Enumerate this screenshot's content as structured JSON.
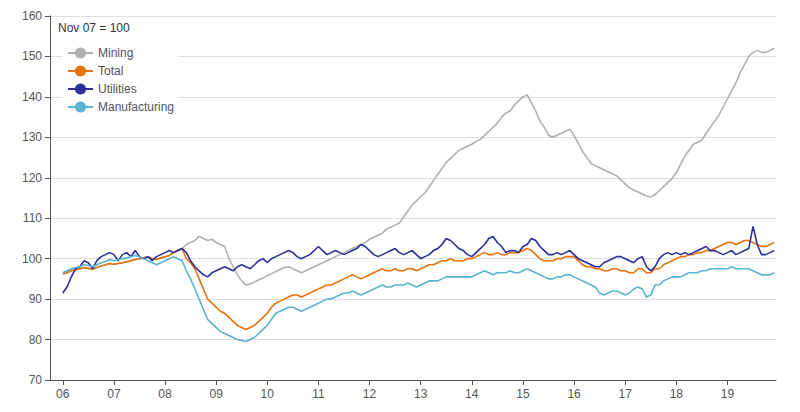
{
  "chart_data": {
    "type": "line",
    "annotation": "Nov 07 = 100",
    "x": [
      2006,
      2006.0833333333333,
      2006.1666666666667,
      2006.25,
      2006.3333333333333,
      2006.4166666666667,
      2006.5,
      2006.5833333333333,
      2006.6666666666667,
      2006.75,
      2006.8333333333333,
      2006.9166666666667,
      2007,
      2007.0833333333333,
      2007.1666666666667,
      2007.25,
      2007.3333333333333,
      2007.4166666666667,
      2007.5,
      2007.5833333333333,
      2007.6666666666667,
      2007.75,
      2007.8333333333333,
      2007.9166666666667,
      2008,
      2008.0833333333333,
      2008.1666666666667,
      2008.25,
      2008.3333333333333,
      2008.4166666666667,
      2008.5,
      2008.5833333333333,
      2008.6666666666667,
      2008.75,
      2008.8333333333333,
      2008.9166666666667,
      2009,
      2009.0833333333333,
      2009.1666666666667,
      2009.25,
      2009.3333333333333,
      2009.4166666666667,
      2009.5,
      2009.5833333333333,
      2009.6666666666667,
      2009.75,
      2009.8333333333333,
      2009.9166666666667,
      2010,
      2010.0833333333333,
      2010.1666666666667,
      2010.25,
      2010.3333333333333,
      2010.4166666666667,
      2010.5,
      2010.5833333333333,
      2010.6666666666667,
      2010.75,
      2010.8333333333333,
      2010.9166666666667,
      2011,
      2011.0833333333333,
      2011.1666666666667,
      2011.25,
      2011.3333333333333,
      2011.4166666666667,
      2011.5,
      2011.5833333333333,
      2011.6666666666667,
      2011.75,
      2011.8333333333333,
      2011.9166666666667,
      2012,
      2012.0833333333333,
      2012.1666666666667,
      2012.25,
      2012.3333333333333,
      2012.4166666666667,
      2012.5,
      2012.5833333333333,
      2012.6666666666667,
      2012.75,
      2012.8333333333333,
      2012.9166666666667,
      2013,
      2013.0833333333333,
      2013.1666666666667,
      2013.25,
      2013.3333333333333,
      2013.4166666666667,
      2013.5,
      2013.5833333333333,
      2013.6666666666667,
      2013.75,
      2013.8333333333333,
      2013.9166666666667,
      2014,
      2014.0833333333333,
      2014.1666666666667,
      2014.25,
      2014.3333333333333,
      2014.4166666666667,
      2014.5,
      2014.5833333333333,
      2014.6666666666667,
      2014.75,
      2014.8333333333333,
      2014.9166666666667,
      2015,
      2015.0833333333333,
      2015.1666666666667,
      2015.25,
      2015.3333333333333,
      2015.4166666666667,
      2015.5,
      2015.5833333333333,
      2015.6666666666667,
      2015.75,
      2015.8333333333333,
      2015.9166666666667,
      2016,
      2016.0833333333333,
      2016.1666666666667,
      2016.25,
      2016.3333333333333,
      2016.4166666666667,
      2016.5,
      2016.5833333333333,
      2016.6666666666667,
      2016.75,
      2016.8333333333333,
      2016.9166666666667,
      2017,
      2017.0833333333333,
      2017.1666666666667,
      2017.25,
      2017.3333333333333,
      2017.4166666666667,
      2017.5,
      2017.5833333333333,
      2017.6666666666667,
      2017.75,
      2017.8333333333333,
      2017.9166666666667,
      2018,
      2018.0833333333333,
      2018.1666666666667,
      2018.25,
      2018.3333333333333,
      2018.4166666666667,
      2018.5,
      2018.5833333333333,
      2018.6666666666667,
      2018.75,
      2018.8333333333333,
      2018.9166666666667,
      2019,
      2019.0833333333333,
      2019.1666666666667,
      2019.25,
      2019.3333333333333,
      2019.4166666666667,
      2019.5,
      2019.5833333333333,
      2019.6666666666667,
      2019.75,
      2019.8333333333333,
      2019.9166666666667
    ],
    "series": [
      {
        "name": "Mining",
        "color": "#b0b0b0",
        "values": [
          96.2,
          96.5,
          97.0,
          97.3,
          97.5,
          97.8,
          97.6,
          97.4,
          97.8,
          98.2,
          98.5,
          98.8,
          98.6,
          98.8,
          99.0,
          99.2,
          99.5,
          99.8,
          100.0,
          100.2,
          100.5,
          100.0,
          99.8,
          100.2,
          100.5,
          100.8,
          101.5,
          102.0,
          102.5,
          103.5,
          104.0,
          104.5,
          105.5,
          105.0,
          104.5,
          104.8,
          104.0,
          103.5,
          103.0,
          100.0,
          98.0,
          96.0,
          94.5,
          93.5,
          93.8,
          94.2,
          94.8,
          95.2,
          95.8,
          96.3,
          96.8,
          97.3,
          97.8,
          98.0,
          97.5,
          97.0,
          96.5,
          97.0,
          97.5,
          98.0,
          98.5,
          99.0,
          99.5,
          100.0,
          100.5,
          101.0,
          101.5,
          102.0,
          102.5,
          103.0,
          103.5,
          104.0,
          104.8,
          105.3,
          105.8,
          106.3,
          107.3,
          107.8,
          108.3,
          108.8,
          110.3,
          111.8,
          113.3,
          114.3,
          115.3,
          116.3,
          117.8,
          119.3,
          120.8,
          122.3,
          123.8,
          124.8,
          125.8,
          126.8,
          127.3,
          127.8,
          128.3,
          129.0,
          129.5,
          130.5,
          131.5,
          132.5,
          133.5,
          135.0,
          136.0,
          136.5,
          138.0,
          139.0,
          140.0,
          140.5,
          138.5,
          136.5,
          134.0,
          132.5,
          130.5,
          130.0,
          130.5,
          131.0,
          131.5,
          132.0,
          130.5,
          128.5,
          126.5,
          125.0,
          123.5,
          123.0,
          122.5,
          122.0,
          121.5,
          121.0,
          120.5,
          119.5,
          118.5,
          117.5,
          117.0,
          116.5,
          116.0,
          115.5,
          115.3,
          115.8,
          116.8,
          117.8,
          118.8,
          119.8,
          121.3,
          123.3,
          125.3,
          126.8,
          128.3,
          128.8,
          129.3,
          131.0,
          132.5,
          134.0,
          135.5,
          137.5,
          139.5,
          141.5,
          143.5,
          146.0,
          148.0,
          150.0,
          151.0,
          151.5,
          151.0,
          151.0,
          151.5,
          152.0
        ]
      },
      {
        "name": "Total",
        "color": "#e8720c",
        "values": [
          96.2,
          96.5,
          97.0,
          97.3,
          97.5,
          97.8,
          97.6,
          97.4,
          97.8,
          98.2,
          98.5,
          98.8,
          98.6,
          98.8,
          99.0,
          99.2,
          99.5,
          99.8,
          100.0,
          100.2,
          100.5,
          100.0,
          99.8,
          100.2,
          100.5,
          100.8,
          101.5,
          102.0,
          102.5,
          100.0,
          99.0,
          97.5,
          95.0,
          92.5,
          90.0,
          89.0,
          88.0,
          87.0,
          86.5,
          85.5,
          84.5,
          83.5,
          83.0,
          82.5,
          83.0,
          83.5,
          84.5,
          85.5,
          86.5,
          88.0,
          89.0,
          89.5,
          90.0,
          90.5,
          91.0,
          91.0,
          90.5,
          91.0,
          91.5,
          92.0,
          92.5,
          93.0,
          93.5,
          93.5,
          94.0,
          94.5,
          95.0,
          95.5,
          96.0,
          95.5,
          95.0,
          95.5,
          96.0,
          96.5,
          97.0,
          97.5,
          97.0,
          97.0,
          97.5,
          97.0,
          97.0,
          97.5,
          97.5,
          97.0,
          97.5,
          98.0,
          98.5,
          98.5,
          99.0,
          99.5,
          99.5,
          100.0,
          99.5,
          99.5,
          99.5,
          100.0,
          100.0,
          100.5,
          101.0,
          101.5,
          101.0,
          101.0,
          101.5,
          101.0,
          101.0,
          101.5,
          101.5,
          101.5,
          102.0,
          102.5,
          102.0,
          101.0,
          100.0,
          99.5,
          99.5,
          99.5,
          100.0,
          100.0,
          100.5,
          100.5,
          100.5,
          99.5,
          98.5,
          98.0,
          98.0,
          97.5,
          97.5,
          97.0,
          97.0,
          97.5,
          97.5,
          97.0,
          97.0,
          96.5,
          96.5,
          97.5,
          97.5,
          96.5,
          96.5,
          97.5,
          97.5,
          98.5,
          99.0,
          99.5,
          100.0,
          100.5,
          100.5,
          101.0,
          101.0,
          101.5,
          101.5,
          102.0,
          102.0,
          102.5,
          103.0,
          103.5,
          104.0,
          104.0,
          103.5,
          104.0,
          104.5,
          104.5,
          104.0,
          103.5,
          103.0,
          103.0,
          103.5,
          104.0
        ]
      },
      {
        "name": "Utilities",
        "color": "#2e2e9a",
        "values": [
          91.5,
          93.0,
          95.5,
          97.5,
          98.0,
          99.5,
          99.0,
          97.5,
          99.5,
          100.5,
          101.0,
          101.5,
          101.0,
          99.5,
          101.0,
          101.5,
          100.5,
          102.0,
          100.5,
          100.0,
          100.5,
          99.5,
          100.5,
          101.0,
          101.5,
          102.0,
          101.5,
          102.0,
          102.5,
          101.5,
          99.5,
          98.0,
          97.0,
          96.0,
          95.5,
          96.5,
          97.0,
          97.5,
          98.0,
          97.5,
          97.0,
          98.0,
          98.5,
          98.0,
          97.5,
          98.5,
          99.5,
          100.0,
          99.0,
          100.0,
          100.5,
          101.0,
          101.5,
          102.0,
          101.5,
          100.5,
          100.0,
          100.5,
          101.0,
          102.0,
          103.0,
          102.0,
          101.0,
          101.5,
          102.0,
          101.5,
          101.0,
          101.5,
          102.0,
          102.5,
          103.5,
          103.0,
          102.0,
          101.0,
          100.5,
          101.0,
          101.5,
          102.0,
          102.5,
          101.5,
          101.0,
          101.5,
          102.0,
          101.0,
          100.0,
          100.5,
          101.0,
          102.0,
          102.5,
          103.5,
          105.0,
          104.5,
          103.5,
          102.5,
          102.0,
          101.0,
          100.5,
          101.5,
          102.5,
          103.5,
          105.0,
          105.5,
          104.0,
          103.0,
          101.5,
          102.0,
          102.0,
          101.5,
          103.0,
          103.5,
          105.0,
          104.5,
          103.0,
          102.0,
          101.0,
          101.0,
          101.5,
          101.0,
          101.5,
          102.0,
          101.0,
          100.0,
          99.5,
          99.0,
          98.5,
          98.0,
          98.0,
          99.0,
          99.5,
          100.0,
          100.5,
          100.5,
          100.0,
          99.5,
          99.0,
          100.0,
          100.5,
          98.0,
          97.0,
          98.0,
          100.0,
          101.0,
          101.5,
          101.0,
          101.5,
          101.0,
          101.5,
          101.0,
          101.5,
          102.0,
          102.5,
          103.0,
          102.0,
          102.0,
          101.5,
          101.0,
          101.5,
          102.0,
          101.0,
          101.5,
          102.0,
          102.5,
          108.0,
          103.5,
          101.0,
          101.0,
          101.5,
          102.0
        ]
      },
      {
        "name": "Manufacturing",
        "color": "#5ab4d0",
        "values": [
          96.5,
          97.0,
          97.5,
          97.8,
          98.0,
          98.5,
          98.3,
          98.0,
          98.5,
          99.0,
          99.3,
          99.8,
          99.5,
          99.8,
          100.0,
          100.2,
          100.5,
          100.8,
          100.5,
          100.0,
          99.5,
          99.0,
          98.5,
          99.0,
          99.5,
          100.0,
          100.5,
          100.0,
          99.5,
          97.0,
          95.0,
          92.5,
          90.0,
          87.5,
          85.0,
          84.0,
          83.0,
          82.0,
          81.5,
          81.0,
          80.5,
          80.0,
          79.8,
          79.5,
          80.0,
          80.5,
          81.5,
          82.5,
          83.5,
          85.0,
          86.5,
          87.0,
          87.5,
          88.0,
          88.0,
          87.5,
          87.0,
          87.5,
          88.0,
          88.5,
          89.0,
          89.5,
          90.0,
          90.0,
          90.5,
          91.0,
          91.5,
          91.5,
          92.0,
          91.5,
          91.0,
          91.5,
          92.0,
          92.5,
          93.0,
          93.5,
          93.0,
          93.0,
          93.5,
          93.5,
          93.5,
          94.0,
          93.5,
          93.0,
          93.5,
          94.0,
          94.5,
          94.5,
          94.5,
          95.0,
          95.5,
          95.5,
          95.5,
          95.5,
          95.5,
          95.5,
          95.5,
          96.0,
          96.5,
          97.0,
          96.5,
          96.0,
          96.5,
          96.5,
          96.5,
          97.0,
          96.5,
          96.5,
          97.0,
          97.5,
          97.0,
          96.5,
          96.0,
          95.5,
          95.0,
          95.0,
          95.5,
          95.5,
          96.0,
          96.0,
          95.5,
          95.0,
          94.5,
          94.0,
          93.5,
          93.0,
          91.5,
          91.0,
          91.5,
          92.0,
          92.0,
          91.5,
          91.0,
          91.5,
          92.5,
          93.0,
          92.5,
          90.5,
          91.0,
          93.5,
          93.5,
          94.5,
          95.0,
          95.5,
          95.5,
          95.5,
          96.0,
          96.5,
          96.5,
          96.5,
          97.0,
          97.0,
          97.5,
          97.5,
          97.5,
          97.5,
          97.5,
          98.0,
          97.5,
          97.5,
          97.5,
          97.5,
          97.0,
          96.5,
          96.0,
          96.0,
          96.0,
          96.5
        ]
      }
    ],
    "xlim": [
      2005.75,
      2019.95
    ],
    "xticks": [
      {
        "value": 2006,
        "label": "06"
      },
      {
        "value": 2007,
        "label": "07"
      },
      {
        "value": 2008,
        "label": "08"
      },
      {
        "value": 2009,
        "label": "09"
      },
      {
        "value": 2010,
        "label": "10"
      },
      {
        "value": 2011,
        "label": "11"
      },
      {
        "value": 2012,
        "label": "12"
      },
      {
        "value": 2013,
        "label": "13"
      },
      {
        "value": 2014,
        "label": "14"
      },
      {
        "value": 2015,
        "label": "15"
      },
      {
        "value": 2016,
        "label": "16"
      },
      {
        "value": 2017,
        "label": "17"
      },
      {
        "value": 2018,
        "label": "18"
      },
      {
        "value": 2019,
        "label": "19"
      }
    ],
    "ylim": [
      70,
      160
    ],
    "yticks": [
      70,
      80,
      90,
      100,
      110,
      120,
      130,
      140,
      150,
      160
    ],
    "grid": true,
    "legend": "upper left"
  }
}
